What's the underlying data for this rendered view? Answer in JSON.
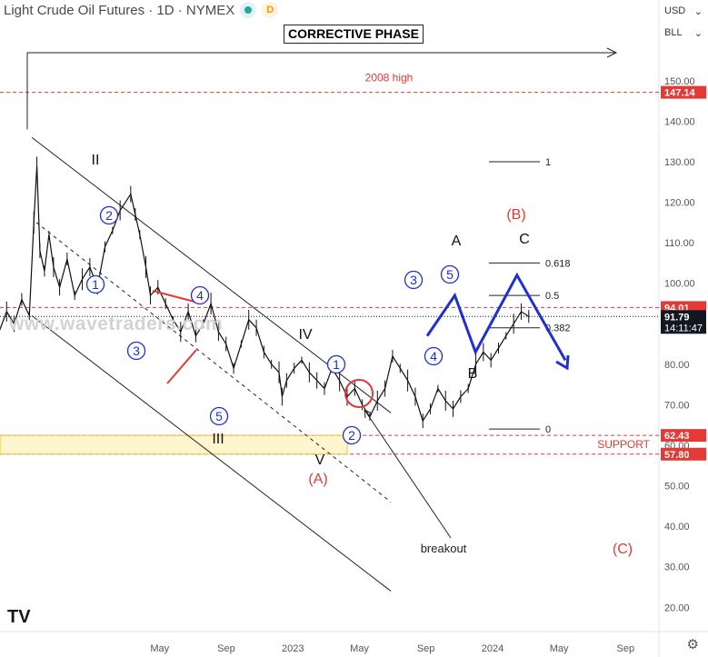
{
  "header": {
    "title": "Light Crude Oil Futures · 1D · NYMEX",
    "status_dot_color": "#26a69a",
    "d_badge": "D",
    "d_badge_color": "#ff9800"
  },
  "controls": {
    "currency": "USD",
    "unit": "BLL"
  },
  "phase_label": "CORRECTIVE PHASE",
  "watermark": "www.wavetraders.com",
  "logo_text": "TV",
  "chart_data": {
    "type": "line",
    "title": "Light Crude Oil Futures · 1D · NYMEX",
    "ylim": [
      14,
      165
    ],
    "yticks": [
      20,
      30,
      40,
      50,
      60,
      70,
      80,
      90,
      100,
      110,
      120,
      130,
      140,
      150
    ],
    "xticks": [
      {
        "label": "May",
        "t": 0.0
      },
      {
        "label": "Sep",
        "t": 0.333
      },
      {
        "label": "2023",
        "t": 0.667
      },
      {
        "label": "May",
        "t": 1.0
      },
      {
        "label": "Sep",
        "t": 1.333
      },
      {
        "label": "2024",
        "t": 1.667
      },
      {
        "label": "May",
        "t": 2.0
      },
      {
        "label": "Sep",
        "t": 2.333
      }
    ],
    "series": [
      {
        "values": [
          [
            -0.6,
            88
          ],
          [
            -0.55,
            93
          ],
          [
            -0.5,
            90
          ],
          [
            -0.45,
            96
          ],
          [
            -0.4,
            92
          ],
          [
            -0.37,
            115
          ],
          [
            -0.35,
            129
          ],
          [
            -0.33,
            108
          ],
          [
            -0.3,
            103
          ],
          [
            -0.27,
            112
          ],
          [
            -0.24,
            104
          ],
          [
            -0.2,
            99
          ],
          [
            -0.15,
            106
          ],
          [
            -0.1,
            97
          ],
          [
            -0.05,
            101
          ],
          [
            0.0,
            104
          ],
          [
            0.05,
            99
          ],
          [
            0.1,
            109
          ],
          [
            0.15,
            113
          ],
          [
            0.2,
            118
          ],
          [
            0.27,
            122
          ],
          [
            0.3,
            117
          ],
          [
            0.33,
            112
          ],
          [
            0.37,
            104
          ],
          [
            0.4,
            97
          ],
          [
            0.45,
            99
          ],
          [
            0.5,
            95
          ],
          [
            0.55,
            91
          ],
          [
            0.6,
            88
          ],
          [
            0.65,
            93
          ],
          [
            0.7,
            87
          ],
          [
            0.75,
            90
          ],
          [
            0.8,
            95
          ],
          [
            0.85,
            88
          ],
          [
            0.9,
            85
          ],
          [
            0.95,
            79
          ],
          [
            1.0,
            85
          ],
          [
            1.05,
            91
          ],
          [
            1.1,
            89
          ],
          [
            1.15,
            83
          ],
          [
            1.2,
            80
          ],
          [
            1.25,
            78
          ],
          [
            1.27,
            72
          ],
          [
            1.3,
            76
          ],
          [
            1.35,
            79
          ],
          [
            1.4,
            81
          ],
          [
            1.45,
            78
          ],
          [
            1.5,
            76
          ],
          [
            1.55,
            74
          ],
          [
            1.6,
            79
          ],
          [
            1.65,
            76
          ],
          [
            1.7,
            72
          ],
          [
            1.75,
            74
          ],
          [
            1.8,
            70
          ],
          [
            1.85,
            67
          ],
          [
            1.9,
            71
          ],
          [
            1.95,
            74
          ],
          [
            2.0,
            82
          ],
          [
            2.05,
            79
          ],
          [
            2.1,
            76
          ],
          [
            2.15,
            72
          ],
          [
            2.2,
            66
          ],
          [
            2.25,
            69
          ],
          [
            2.3,
            74
          ],
          [
            2.35,
            71
          ],
          [
            2.4,
            69
          ],
          [
            2.45,
            72
          ],
          [
            2.5,
            74
          ],
          [
            2.55,
            80
          ],
          [
            2.6,
            83
          ],
          [
            2.65,
            81
          ],
          [
            2.7,
            84
          ],
          [
            2.75,
            87
          ],
          [
            2.8,
            90
          ],
          [
            2.85,
            93
          ],
          [
            2.9,
            91.8
          ]
        ]
      }
    ],
    "price_levels": [
      {
        "label": "2008 high",
        "value": 147.14,
        "color": "#e53935"
      },
      {
        "value": 94.01,
        "color": "#e53935"
      },
      {
        "value": 91.79,
        "color": "#131722"
      },
      {
        "label": "SUPPORT",
        "value": 62.43,
        "color": "#e53935"
      },
      {
        "value": 57.8,
        "color": "#e53935"
      }
    ],
    "price_labels": [
      {
        "text": "147.14",
        "value": 147.14,
        "bg": "#e53935"
      },
      {
        "text": "94.01",
        "value": 94.01,
        "bg": "#e53935"
      },
      {
        "text": "91.79",
        "sub": "14:11:47",
        "value": 91.79,
        "bg": "#131722"
      },
      {
        "text": "62.43",
        "value": 62.43,
        "bg": "#e53935"
      },
      {
        "text": "57.80",
        "value": 57.8,
        "bg": "#e53935"
      }
    ],
    "fib_levels": [
      {
        "label": "1",
        "value": 130
      },
      {
        "label": "0.618",
        "value": 105
      },
      {
        "label": "0.5",
        "value": 97
      },
      {
        "label": "0.382",
        "value": 89
      },
      {
        "label": "0",
        "value": 64
      }
    ],
    "wave_labels": [
      {
        "text": "II",
        "t": 0.35,
        "v": 134,
        "style": "black"
      },
      {
        "text": "IV",
        "t": 2.0,
        "v": 87,
        "style": "black"
      },
      {
        "text": "III",
        "t": 1.1,
        "v": 60,
        "style": "black"
      },
      {
        "text": "V",
        "t": 2.05,
        "v": 56,
        "style": "black"
      },
      {
        "text": "(A)",
        "t": 2.05,
        "v": 51,
        "style": "red"
      },
      {
        "text": "(B)",
        "t": 3.65,
        "v": 116,
        "style": "red"
      },
      {
        "text": "(C)",
        "t": 4.4,
        "v": 38,
        "style": "red"
      },
      {
        "text": "A",
        "t": 3.1,
        "v": 112,
        "style": "black"
      },
      {
        "text": "B",
        "t": 3.2,
        "v": 80,
        "style": "black"
      },
      {
        "text": "C",
        "t": 3.7,
        "v": 112,
        "style": "black"
      },
      {
        "text": "1",
        "t": 0.33,
        "v": 102,
        "style": "circle"
      },
      {
        "text": "2",
        "t": 0.5,
        "v": 120,
        "style": "circle"
      },
      {
        "text": "3",
        "t": 0.8,
        "v": 88,
        "style": "circle"
      },
      {
        "text": "4",
        "t": 1.25,
        "v": 97,
        "style": "circle"
      },
      {
        "text": "5",
        "t": 1.4,
        "v": 72,
        "style": "circle"
      },
      {
        "text": "1",
        "t": 2.2,
        "v": 82,
        "style": "circle"
      },
      {
        "text": "2",
        "t": 2.32,
        "v": 63,
        "style": "circle"
      },
      {
        "text": "3",
        "t": 2.82,
        "v": 101,
        "style": "circle"
      },
      {
        "text": "4",
        "t": 2.97,
        "v": 83,
        "style": "circle"
      },
      {
        "text": "5",
        "t": 3.15,
        "v": 102,
        "style": "circle"
      }
    ],
    "projection": [
      [
        2.95,
        87
      ],
      [
        3.15,
        97
      ],
      [
        3.3,
        83
      ],
      [
        3.6,
        102
      ],
      [
        3.95,
        81
      ]
    ],
    "annotations": [
      {
        "text": "breakout"
      }
    ],
    "grid": false
  }
}
